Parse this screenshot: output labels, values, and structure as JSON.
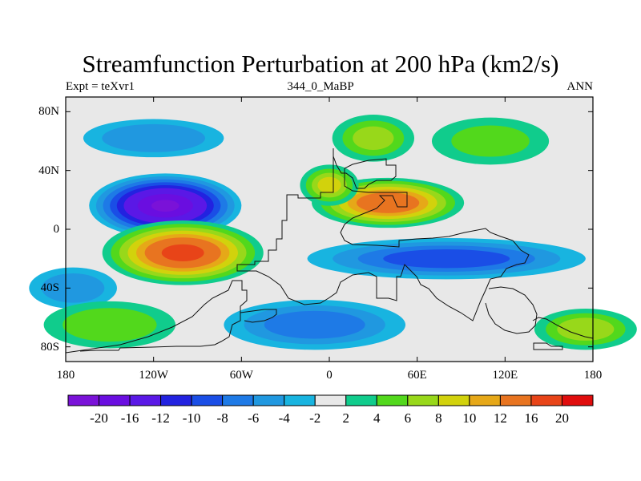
{
  "title": "Streamfunction Perturbation at 200 hPa (km2/s)",
  "experiment_label": "Expt = teXvr1",
  "run_label": "344_0_MaBP",
  "period_label": "ANN",
  "latitude_ticks": [
    {
      "label": "80N",
      "lat": 80
    },
    {
      "label": "40N",
      "lat": 40
    },
    {
      "label": "0",
      "lat": 0
    },
    {
      "label": "40S",
      "lat": -40
    },
    {
      "label": "80S",
      "lat": -80
    }
  ],
  "longitude_ticks": [
    {
      "label": "180",
      "lon": -180
    },
    {
      "label": "120W",
      "lon": -120
    },
    {
      "label": "60W",
      "lon": -60
    },
    {
      "label": "0",
      "lon": 0
    },
    {
      "label": "60E",
      "lon": 60
    },
    {
      "label": "120E",
      "lon": 120
    },
    {
      "label": "180",
      "lon": 180
    }
  ],
  "colorbar": {
    "colors": [
      "#7a12d8",
      "#6a0ee0",
      "#5a18e6",
      "#2222e0",
      "#1a4ee6",
      "#1e7ae6",
      "#2098e0",
      "#18b4e0",
      "#e8e8e8",
      "#10cc8c",
      "#52d81c",
      "#98d81a",
      "#d2d20c",
      "#e6a818",
      "#e87420",
      "#e84418",
      "#e00d0d"
    ],
    "labels": [
      "-20",
      "-16",
      "-12",
      "-10",
      "-8",
      "-6",
      "-4",
      "-2",
      "2",
      "4",
      "6",
      "8",
      "10",
      "12",
      "16",
      "20"
    ]
  },
  "field_features": [
    {
      "lon_center": -120,
      "lat_center": 62,
      "lon_radius": 48,
      "lat_radius": 13,
      "value": -5.5
    },
    {
      "lon_center": -112,
      "lat_center": 16,
      "lon_radius": 52,
      "lat_radius": 22,
      "value": -20
    },
    {
      "lon_center": -100,
      "lat_center": -16,
      "lon_radius": 55,
      "lat_radius": 22,
      "value": 17
    },
    {
      "lon_center": 30,
      "lat_center": 62,
      "lon_radius": 28,
      "lat_radius": 16,
      "value": 6
    },
    {
      "lon_center": 110,
      "lat_center": 60,
      "lon_radius": 40,
      "lat_radius": 16,
      "value": 4
    },
    {
      "lon_center": 40,
      "lat_center": 18,
      "lon_radius": 52,
      "lat_radius": 17,
      "value": 15
    },
    {
      "lon_center": 0,
      "lat_center": 30,
      "lon_radius": 20,
      "lat_radius": 14,
      "value": 8
    },
    {
      "lon_center": 80,
      "lat_center": -20,
      "lon_radius": 95,
      "lat_radius": 14,
      "value": -9
    },
    {
      "lon_center": -10,
      "lat_center": -65,
      "lon_radius": 62,
      "lat_radius": 17,
      "value": -7
    },
    {
      "lon_center": -175,
      "lat_center": -40,
      "lon_radius": 30,
      "lat_radius": 14,
      "value": -5
    },
    {
      "lon_center": 175,
      "lat_center": -68,
      "lon_radius": 35,
      "lat_radius": 14,
      "value": 7
    },
    {
      "lon_center": -150,
      "lat_center": -65,
      "lon_radius": 45,
      "lat_radius": 16,
      "value": 5
    }
  ]
}
